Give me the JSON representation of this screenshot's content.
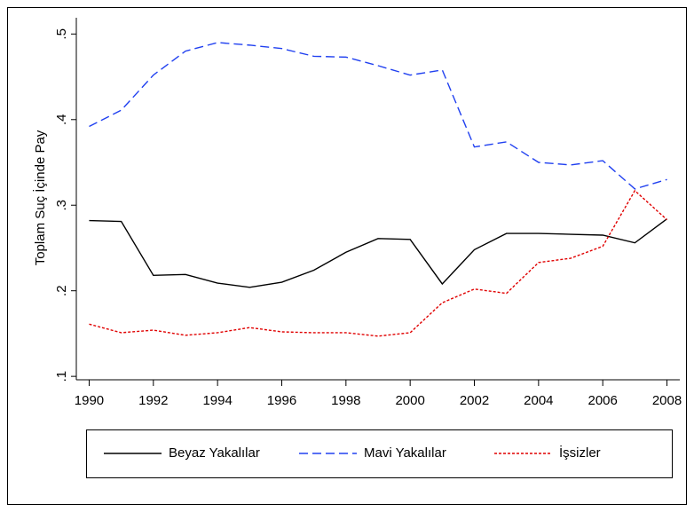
{
  "chart_data": {
    "type": "line",
    "y_label": "Toplam Suç İçinde Pay",
    "x": [
      1990,
      1991,
      1992,
      1993,
      1994,
      1995,
      1996,
      1997,
      1998,
      1999,
      2000,
      2001,
      2002,
      2003,
      2004,
      2005,
      2006,
      2007,
      2008
    ],
    "series": [
      {
        "name": "Beyaz Yakalılar",
        "color": "#000000",
        "dash": "solid",
        "values": [
          0.282,
          0.281,
          0.218,
          0.219,
          0.209,
          0.204,
          0.21,
          0.224,
          0.245,
          0.261,
          0.26,
          0.208,
          0.248,
          0.267,
          0.267,
          0.266,
          0.265,
          0.256,
          0.284
        ]
      },
      {
        "name": "Mavi Yakalılar",
        "color": "#2040f0",
        "dash": "dashed",
        "values": [
          0.392,
          0.411,
          0.452,
          0.48,
          0.49,
          0.487,
          0.483,
          0.474,
          0.473,
          0.463,
          0.452,
          0.458,
          0.368,
          0.374,
          0.35,
          0.347,
          0.352,
          0.319,
          0.33
        ]
      },
      {
        "name": "İşsizler",
        "color": "#e00000",
        "dash": "dotted",
        "values": [
          0.161,
          0.151,
          0.154,
          0.148,
          0.151,
          0.157,
          0.152,
          0.151,
          0.151,
          0.147,
          0.151,
          0.186,
          0.202,
          0.197,
          0.233,
          0.238,
          0.252,
          0.317,
          0.283
        ]
      }
    ],
    "xlim": [
      1989.6,
      2008.4
    ],
    "xticks": [
      1990,
      1992,
      1994,
      1996,
      1998,
      2000,
      2002,
      2004,
      2006,
      2008
    ],
    "ylim": [
      0.096,
      0.519
    ],
    "yticks": [
      {
        "value": 0.1,
        "label": ".1"
      },
      {
        "value": 0.2,
        "label": ".2"
      },
      {
        "value": 0.3,
        "label": ".3"
      },
      {
        "value": 0.4,
        "label": ".4"
      },
      {
        "value": 0.5,
        "label": ".5"
      }
    ],
    "grid": false,
    "legend": "bottom"
  }
}
